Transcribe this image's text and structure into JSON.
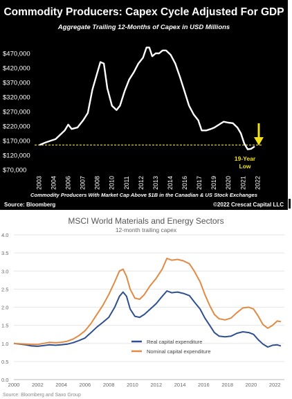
{
  "chart_data": [
    {
      "type": "line",
      "title": "Commodity Producers: Capex Cycle Adjusted For GDP",
      "subtitle": "Aggregate Trailing 12-Months of Capex in USD Millions",
      "xlabel": "",
      "ylabel": "",
      "x_ticks": [
        "2003",
        "2004",
        "2006",
        "2007",
        "2008",
        "2010",
        "2011",
        "2012",
        "2013",
        "2014",
        "2016",
        "2017",
        "2019",
        "2020",
        "2021",
        "2022"
      ],
      "y_ticks": [
        "$470,000",
        "$420,000",
        "$370,000",
        "$320,000",
        "$270,000",
        "$220,000",
        "$170,000",
        "$120,000",
        "$70,000"
      ],
      "ylim": [
        70000,
        470000
      ],
      "line_color": "#ffffff",
      "reference_line": {
        "value": 155000,
        "color": "#e8e23a"
      },
      "arrow_color": "#f0e020",
      "annotation": "19-Year Low",
      "annotation_lines": [
        "19-Year",
        "Low"
      ],
      "source": "Source: Bloomberg",
      "footnote": "Commodity Producers With Market Cap Above $1B in the Canadian & US Stock Exchanges",
      "credit": "©2022 Crescat Capital LLC",
      "series": [
        {
          "values": [
            [
              2003.0,
              155000
            ],
            [
              2003.5,
              163000
            ],
            [
              2004.0,
              170000
            ],
            [
              2004.4,
              175000
            ],
            [
              2004.8,
              190000
            ],
            [
              2005.2,
              205000
            ],
            [
              2005.5,
              225000
            ],
            [
              2005.8,
              210000
            ],
            [
              2006.3,
              215000
            ],
            [
              2006.8,
              240000
            ],
            [
              2007.2,
              265000
            ],
            [
              2007.6,
              345000
            ],
            [
              2008.0,
              400000
            ],
            [
              2008.3,
              440000
            ],
            [
              2008.6,
              435000
            ],
            [
              2008.9,
              350000
            ],
            [
              2009.3,
              290000
            ],
            [
              2009.7,
              275000
            ],
            [
              2010.0,
              290000
            ],
            [
              2010.4,
              340000
            ],
            [
              2010.8,
              380000
            ],
            [
              2011.2,
              405000
            ],
            [
              2011.6,
              435000
            ],
            [
              2012.0,
              455000
            ],
            [
              2012.3,
              490000
            ],
            [
              2012.55,
              490000
            ],
            [
              2012.8,
              460000
            ],
            [
              2013.1,
              470000
            ],
            [
              2013.4,
              470000
            ],
            [
              2013.7,
              480000
            ],
            [
              2014.0,
              480000
            ],
            [
              2014.4,
              465000
            ],
            [
              2014.8,
              435000
            ],
            [
              2015.2,
              390000
            ],
            [
              2015.6,
              340000
            ],
            [
              2016.0,
              290000
            ],
            [
              2016.4,
              260000
            ],
            [
              2016.8,
              240000
            ],
            [
              2017.1,
              205000
            ],
            [
              2017.5,
              205000
            ],
            [
              2017.9,
              210000
            ],
            [
              2018.2,
              215000
            ],
            [
              2018.6,
              225000
            ],
            [
              2019.0,
              235000
            ],
            [
              2019.4,
              232000
            ],
            [
              2019.8,
              230000
            ],
            [
              2020.2,
              215000
            ],
            [
              2020.5,
              195000
            ],
            [
              2020.8,
              160000
            ],
            [
              2021.1,
              140000
            ],
            [
              2021.4,
              142000
            ],
            [
              2021.7,
              150000
            ]
          ]
        }
      ]
    },
    {
      "type": "line",
      "title": "MSCI World Materials and Energy Sectors",
      "subtitle": "12-month trailing capex",
      "xlabel": "",
      "ylabel": "",
      "x_ticks": [
        "2000",
        "2002",
        "2004",
        "2006",
        "2008",
        "2010",
        "2012",
        "2014",
        "2016",
        "2018",
        "2020",
        "2022"
      ],
      "y_ticks": [
        "4.0",
        "3.5",
        "3.0",
        "2.5",
        "2.0",
        "1.5",
        "1.0",
        "0.5",
        "0.0"
      ],
      "xlim": [
        2000,
        2022.8
      ],
      "ylim": [
        0,
        4.0
      ],
      "grid": true,
      "legend_position": "lower-middle",
      "source": "Source: Bloomberg and Saxo Group",
      "series": [
        {
          "name": "Real capital expenditure",
          "color": "#2e4f8f",
          "values": [
            [
              2000.0,
              1.0
            ],
            [
              2000.5,
              0.98
            ],
            [
              2001.0,
              0.96
            ],
            [
              2001.5,
              0.93
            ],
            [
              2002.0,
              0.92
            ],
            [
              2002.5,
              0.94
            ],
            [
              2003.0,
              0.96
            ],
            [
              2003.5,
              0.95
            ],
            [
              2004.0,
              0.96
            ],
            [
              2004.5,
              0.98
            ],
            [
              2005.0,
              1.02
            ],
            [
              2005.5,
              1.08
            ],
            [
              2006.0,
              1.15
            ],
            [
              2006.5,
              1.3
            ],
            [
              2007.0,
              1.45
            ],
            [
              2007.5,
              1.58
            ],
            [
              2008.0,
              1.72
            ],
            [
              2008.5,
              2.0
            ],
            [
              2008.9,
              2.3
            ],
            [
              2009.2,
              2.42
            ],
            [
              2009.5,
              2.3
            ],
            [
              2009.8,
              1.95
            ],
            [
              2010.2,
              1.75
            ],
            [
              2010.6,
              1.72
            ],
            [
              2011.0,
              1.8
            ],
            [
              2011.5,
              1.95
            ],
            [
              2012.0,
              2.1
            ],
            [
              2012.5,
              2.3
            ],
            [
              2012.9,
              2.45
            ],
            [
              2013.3,
              2.4
            ],
            [
              2013.8,
              2.42
            ],
            [
              2014.3,
              2.38
            ],
            [
              2014.8,
              2.32
            ],
            [
              2015.2,
              2.15
            ],
            [
              2015.7,
              1.95
            ],
            [
              2016.1,
              1.7
            ],
            [
              2016.5,
              1.5
            ],
            [
              2016.9,
              1.3
            ],
            [
              2017.3,
              1.2
            ],
            [
              2017.8,
              1.18
            ],
            [
              2018.3,
              1.2
            ],
            [
              2018.8,
              1.28
            ],
            [
              2019.3,
              1.32
            ],
            [
              2019.8,
              1.3
            ],
            [
              2020.2,
              1.25
            ],
            [
              2020.6,
              1.1
            ],
            [
              2021.0,
              0.98
            ],
            [
              2021.4,
              0.9
            ],
            [
              2021.8,
              0.95
            ],
            [
              2022.2,
              0.96
            ],
            [
              2022.5,
              0.93
            ]
          ]
        },
        {
          "name": "Nominal capital expenditure",
          "color": "#e08a43",
          "values": [
            [
              2000.0,
              1.0
            ],
            [
              2000.5,
              0.99
            ],
            [
              2001.0,
              0.98
            ],
            [
              2001.5,
              0.97
            ],
            [
              2002.0,
              0.97
            ],
            [
              2002.5,
              1.0
            ],
            [
              2003.0,
              1.03
            ],
            [
              2003.5,
              1.02
            ],
            [
              2004.0,
              1.03
            ],
            [
              2004.5,
              1.06
            ],
            [
              2005.0,
              1.12
            ],
            [
              2005.5,
              1.22
            ],
            [
              2006.0,
              1.35
            ],
            [
              2006.5,
              1.55
            ],
            [
              2007.0,
              1.8
            ],
            [
              2007.5,
              2.05
            ],
            [
              2008.0,
              2.35
            ],
            [
              2008.5,
              2.7
            ],
            [
              2008.9,
              3.0
            ],
            [
              2009.2,
              3.05
            ],
            [
              2009.5,
              2.85
            ],
            [
              2009.8,
              2.5
            ],
            [
              2010.2,
              2.25
            ],
            [
              2010.6,
              2.22
            ],
            [
              2011.0,
              2.35
            ],
            [
              2011.5,
              2.6
            ],
            [
              2012.0,
              2.8
            ],
            [
              2012.5,
              3.05
            ],
            [
              2012.9,
              3.35
            ],
            [
              2013.3,
              3.3
            ],
            [
              2013.8,
              3.32
            ],
            [
              2014.3,
              3.28
            ],
            [
              2014.8,
              3.2
            ],
            [
              2015.2,
              3.0
            ],
            [
              2015.7,
              2.7
            ],
            [
              2016.1,
              2.35
            ],
            [
              2016.5,
              2.05
            ],
            [
              2016.9,
              1.8
            ],
            [
              2017.3,
              1.68
            ],
            [
              2017.8,
              1.65
            ],
            [
              2018.3,
              1.7
            ],
            [
              2018.8,
              1.85
            ],
            [
              2019.3,
              1.98
            ],
            [
              2019.8,
              2.0
            ],
            [
              2020.2,
              1.95
            ],
            [
              2020.6,
              1.75
            ],
            [
              2021.0,
              1.52
            ],
            [
              2021.4,
              1.42
            ],
            [
              2021.8,
              1.5
            ],
            [
              2022.2,
              1.62
            ],
            [
              2022.5,
              1.6
            ]
          ]
        }
      ]
    }
  ]
}
